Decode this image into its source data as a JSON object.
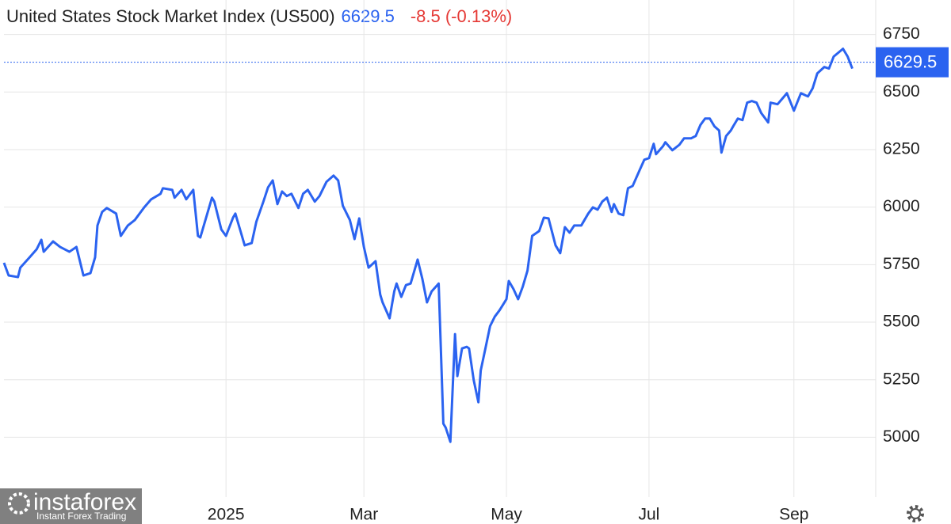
{
  "chart_data": {
    "type": "line",
    "title": "United States Stock Market Index (US500)",
    "last_value": 6629.5,
    "change": "-8.5 (-0.13%)",
    "watermark": {
      "brand": "instaforex",
      "tagline": "Instant Forex Trading"
    },
    "grid": true,
    "xlim": [
      -95,
      278
    ],
    "xticks": [
      {
        "value": 0,
        "label": "2025"
      },
      {
        "value": 59,
        "label": "Mar"
      },
      {
        "value": 120,
        "label": "May"
      },
      {
        "value": 181,
        "label": "Jul"
      },
      {
        "value": 243,
        "label": "Sep"
      }
    ],
    "ylim": [
      4740,
      6900
    ],
    "yticks": [
      5000,
      5250,
      5500,
      5750,
      6000,
      6250,
      6500,
      6750
    ],
    "x": [
      -95,
      -93,
      -89,
      -88,
      -84,
      -81,
      -79,
      -78,
      -74,
      -71,
      -67,
      -64,
      -61,
      -58,
      -56,
      -55,
      -53,
      -51,
      -47,
      -45,
      -42,
      -39,
      -35,
      -32,
      -28,
      -27,
      -23,
      -22,
      -19,
      -17,
      -14,
      -12,
      -11,
      -9,
      -6,
      -5,
      -2,
      0,
      3,
      4,
      6,
      8,
      11,
      13,
      16,
      18,
      20,
      22,
      24,
      26,
      28,
      31,
      33,
      35,
      38,
      40,
      43,
      46,
      48,
      50,
      53,
      55,
      57,
      59,
      61,
      64,
      66,
      67,
      70,
      72,
      73,
      75,
      77,
      79,
      82,
      84,
      86,
      88,
      91,
      93,
      94,
      96,
      98,
      99,
      101,
      103,
      104,
      106,
      108,
      109,
      111,
      113,
      115,
      117,
      120,
      121,
      123,
      125,
      127,
      129,
      131,
      134,
      136,
      138,
      141,
      143,
      145,
      147,
      149,
      152,
      155,
      157,
      159,
      161,
      163,
      165,
      166,
      168,
      170,
      172,
      174,
      177,
      179,
      181,
      183,
      184,
      187,
      188,
      191,
      194,
      196,
      199,
      201,
      203,
      205,
      207,
      209,
      211,
      212,
      214,
      216,
      217,
      219,
      221,
      223,
      225,
      227,
      229,
      232,
      233,
      236,
      238,
      240,
      243,
      246,
      249,
      251,
      253,
      256,
      258,
      260,
      264,
      266,
      268
    ],
    "series": [
      {
        "name": "US500",
        "color": "#2b63f0",
        "values": [
          5758,
          5703,
          5696,
          5737,
          5782,
          5817,
          5858,
          5806,
          5851,
          5827,
          5806,
          5827,
          5703,
          5713,
          5782,
          5920,
          5979,
          5996,
          5972,
          5875,
          5920,
          5944,
          5999,
          6034,
          6058,
          6082,
          6075,
          6041,
          6075,
          6034,
          6075,
          5875,
          5868,
          5937,
          6041,
          6024,
          5903,
          5875,
          5954,
          5972,
          5903,
          5834,
          5844,
          5937,
          6024,
          6086,
          6116,
          6013,
          6068,
          6048,
          6058,
          5996,
          6058,
          6075,
          6024,
          6048,
          6110,
          6137,
          6116,
          6006,
          5944,
          5861,
          5951,
          5827,
          5737,
          5765,
          5620,
          5586,
          5517,
          5634,
          5668,
          5610,
          5661,
          5668,
          5772,
          5689,
          5586,
          5634,
          5668,
          5059,
          5042,
          4980,
          5448,
          5266,
          5386,
          5393,
          5386,
          5248,
          5152,
          5290,
          5386,
          5483,
          5524,
          5551,
          5600,
          5679,
          5644,
          5600,
          5655,
          5724,
          5875,
          5896,
          5954,
          5951,
          5834,
          5800,
          5913,
          5889,
          5920,
          5920,
          5972,
          5999,
          5989,
          6024,
          6041,
          5979,
          6013,
          5972,
          5965,
          6082,
          6092,
          6161,
          6206,
          6213,
          6275,
          6230,
          6265,
          6282,
          6247,
          6271,
          6299,
          6299,
          6309,
          6357,
          6385,
          6385,
          6351,
          6333,
          6237,
          6309,
          6333,
          6351,
          6385,
          6378,
          6454,
          6461,
          6454,
          6409,
          6368,
          6454,
          6447,
          6471,
          6495,
          6419,
          6495,
          6481,
          6516,
          6581,
          6609,
          6602,
          6654,
          6688,
          6654,
          6602
        ]
      }
    ]
  }
}
